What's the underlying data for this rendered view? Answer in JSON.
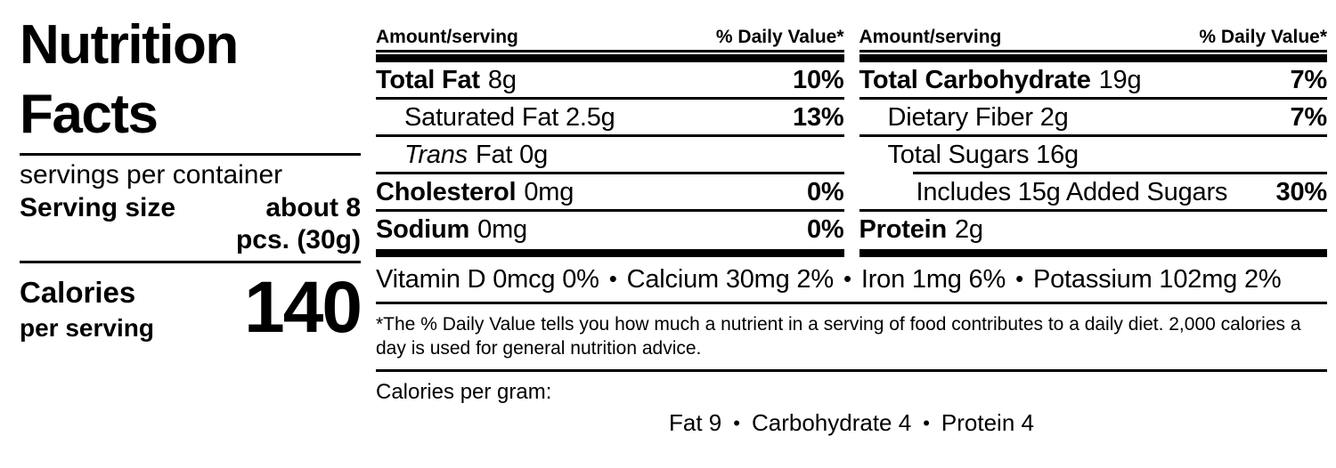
{
  "left": {
    "title_line1": "Nutrition",
    "title_line2": "Facts",
    "servings_text": "servings per container",
    "serving_size_label": "Serving size",
    "serving_size_value_line1": "about 8",
    "serving_size_value_line2": "pcs. (30g)",
    "calories_label": "Calories",
    "calories_sublabel": "per serving",
    "calories_value": "140"
  },
  "columns": [
    {
      "header": {
        "amount": "Amount/serving",
        "dv": "% Daily Value*"
      },
      "rows": [
        {
          "bold": "Total Fat",
          "text": "8g",
          "dv": "10%"
        },
        {
          "text": "Saturated Fat 2.5g",
          "dv": "13%"
        },
        {
          "italic": "Trans",
          "text": "Fat 0g",
          "dv": ""
        },
        {
          "bold": "Cholesterol",
          "text": "0mg",
          "dv": "0%"
        },
        {
          "bold": "Sodium",
          "text": "0mg",
          "dv": "0%"
        }
      ]
    },
    {
      "header": {
        "amount": "Amount/serving",
        "dv": "% Daily Value*"
      },
      "rows": [
        {
          "bold": "Total Carbohydrate",
          "text": "19g",
          "dv": "7%"
        },
        {
          "text": "Dietary Fiber 2g",
          "dv": "7%"
        },
        {
          "text": "Total Sugars 16g",
          "dv": ""
        },
        {
          "text": "Includes 15g Added Sugars",
          "dv": "30%"
        },
        {
          "bold": "Protein",
          "text": "2g",
          "dv": ""
        }
      ]
    }
  ],
  "micronutrients": {
    "separator": "•",
    "items": [
      "Vitamin D 0mcg 0%",
      "Calcium 30mg 2%",
      "Iron 1mg 6%",
      "Potassium 102mg 2%"
    ]
  },
  "footnote": "*The % Daily Value tells you how much a nutrient in a serving of food contributes to a daily diet. 2,000 calories a day is used for general nutrition advice.",
  "calories_per_gram": {
    "label": "Calories per gram:",
    "separator": "•",
    "items": [
      "Fat 9",
      "Carbohydrate 4",
      "Protein 4"
    ]
  },
  "colors": {
    "text": "#000000",
    "background": "#ffffff"
  }
}
